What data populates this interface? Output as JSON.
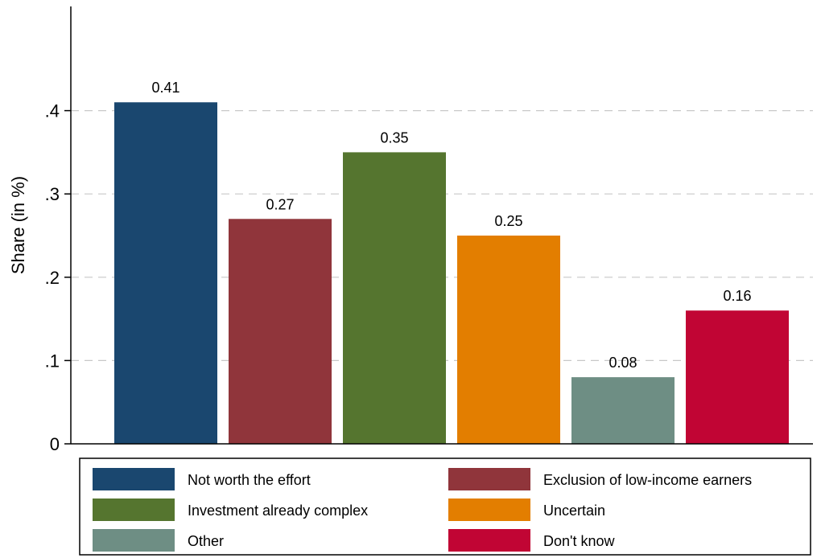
{
  "chart_data": {
    "type": "bar",
    "ylabel": "Share (in %)",
    "ylim": [
      0,
      0.5
    ],
    "yticks": [
      0,
      0.1,
      0.2,
      0.3,
      0.4
    ],
    "ytick_labels": [
      "0",
      ".1",
      ".2",
      ".3",
      ".4"
    ],
    "grid": "horizontal dashed",
    "legend_position": "bottom",
    "categories": [
      "Not worth the effort",
      "Exclusion of low-income earners",
      "Investment already complex",
      "Uncertain",
      "Other",
      "Don't know"
    ],
    "values": [
      0.41,
      0.27,
      0.35,
      0.25,
      0.08,
      0.16
    ],
    "value_labels": [
      "0.41",
      "0.27",
      "0.35",
      "0.25",
      "0.08",
      "0.16"
    ],
    "colors": [
      "#1a476f",
      "#90353b",
      "#55752f",
      "#e37e00",
      "#6e8e84",
      "#c10534"
    ]
  }
}
